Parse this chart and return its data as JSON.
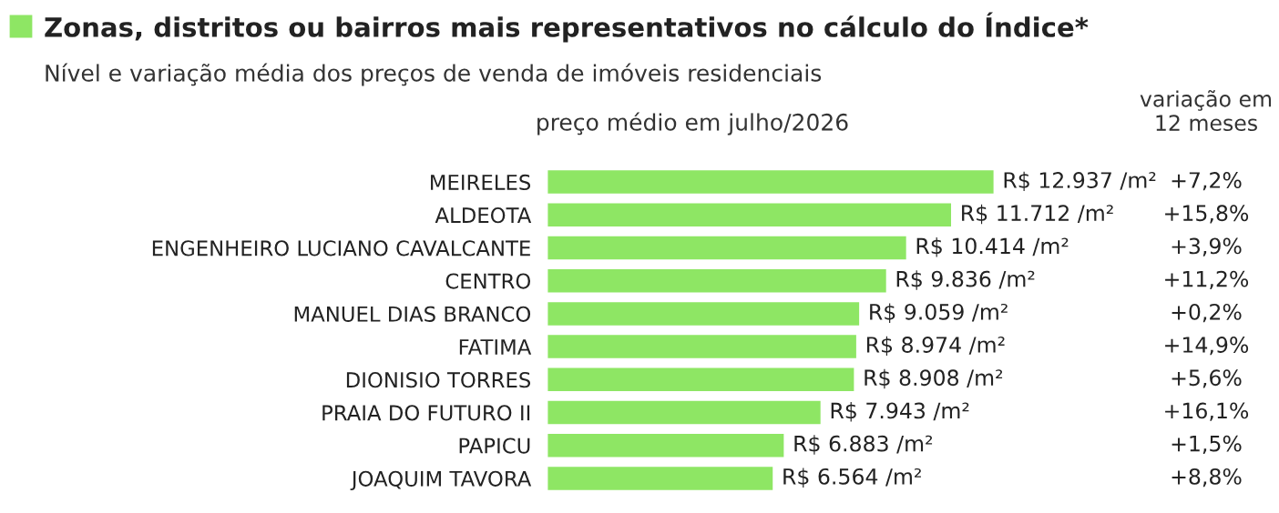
{
  "chart_data": {
    "type": "bar",
    "orientation": "horizontal",
    "title": "Zonas, distritos ou bairros mais representativos no cálculo do Índice*",
    "subtitle": "Nível e variação média dos preços de venda de imóveis residenciais",
    "xlabel": "preço médio em julho/2026",
    "legend_title": "variação em\n12 meses",
    "categories": [
      "MEIRELES",
      "ALDEOTA",
      "ENGENHEIRO LUCIANO CAVALCANTE",
      "CENTRO",
      "MANUEL DIAS BRANCO",
      "FATIMA",
      "DIONISIO TORRES",
      "PRAIA DO FUTURO II",
      "PAPICU",
      "JOAQUIM TAVORA"
    ],
    "values": [
      12937,
      11712,
      10414,
      9836,
      9059,
      8974,
      8908,
      7943,
      6883,
      6564
    ],
    "value_labels": [
      "R$ 12.937 /m²",
      "R$ 11.712 /m²",
      "R$ 10.414 /m²",
      "R$ 9.836 /m²",
      "R$ 9.059 /m²",
      "R$ 8.974 /m²",
      "R$ 8.908 /m²",
      "R$ 7.943 /m²",
      "R$ 6.883 /m²",
      "R$ 6.564 /m²"
    ],
    "color": "#8ee664",
    "annotations": [
      "+7,2%",
      "+15,8%",
      "+3,9%",
      "+11,2%",
      "+0,2%",
      "+14,9%",
      "+5,6%",
      "+16,1%",
      "+1,5%",
      "+8,8%"
    ]
  }
}
